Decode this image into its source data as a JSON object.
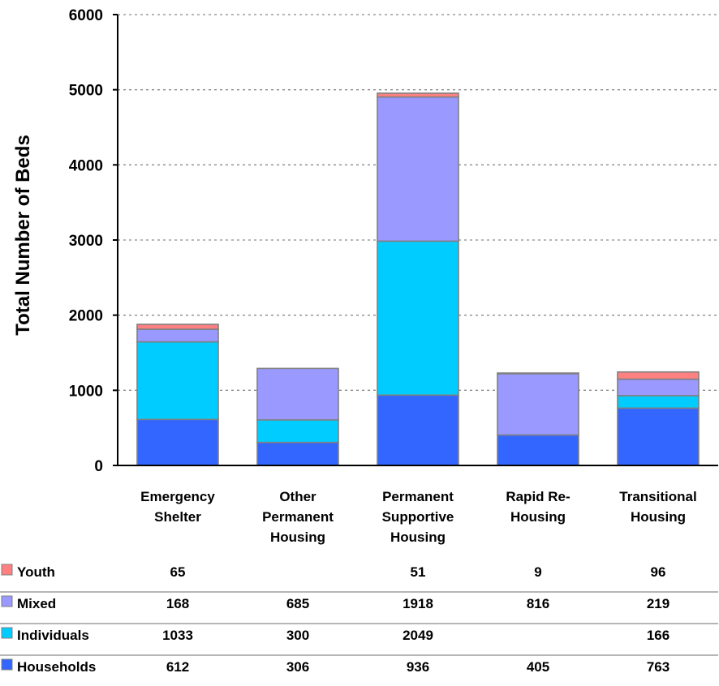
{
  "chart_data": {
    "type": "bar",
    "stacked": true,
    "ylabel": "Total Number of Beds",
    "ylim": [
      0,
      6000
    ],
    "yticks": [
      0,
      1000,
      2000,
      3000,
      4000,
      5000,
      6000
    ],
    "ytick_labels": [
      "0",
      "1000",
      "2000",
      "3000",
      "4000",
      "5000",
      "6000"
    ],
    "grid": true,
    "categories": [
      "Emergency Shelter",
      "Other Permanent Housing",
      "Permanent Supportive Housing",
      "Rapid Re-Housing",
      "Transitional Housing"
    ],
    "category_lines": [
      [
        "Emergency",
        "Shelter"
      ],
      [
        "Other",
        "Permanent",
        "Housing"
      ],
      [
        "Permanent",
        "Supportive",
        "Housing"
      ],
      [
        "Rapid Re-",
        "Housing"
      ],
      [
        "Transitional",
        "Housing"
      ]
    ],
    "series": [
      {
        "name": "Households",
        "color": "#3366ff",
        "values": [
          612,
          306,
          936,
          405,
          763
        ],
        "labels": [
          "612",
          "306",
          "936",
          "405",
          "763"
        ]
      },
      {
        "name": "Individuals",
        "color": "#00ccff",
        "values": [
          1033,
          300,
          2049,
          null,
          166
        ],
        "labels": [
          "1033",
          "300",
          "2049",
          "",
          "166"
        ]
      },
      {
        "name": "Mixed",
        "color": "#9999ff",
        "values": [
          168,
          685,
          1918,
          816,
          219
        ],
        "labels": [
          "168",
          "685",
          "1918",
          "816",
          "219"
        ]
      },
      {
        "name": "Youth",
        "color": "#ff8080",
        "values": [
          65,
          null,
          51,
          9,
          96
        ],
        "labels": [
          "65",
          "",
          "51",
          "9",
          "96"
        ]
      }
    ],
    "legend_placement": "data-table-bottom"
  }
}
